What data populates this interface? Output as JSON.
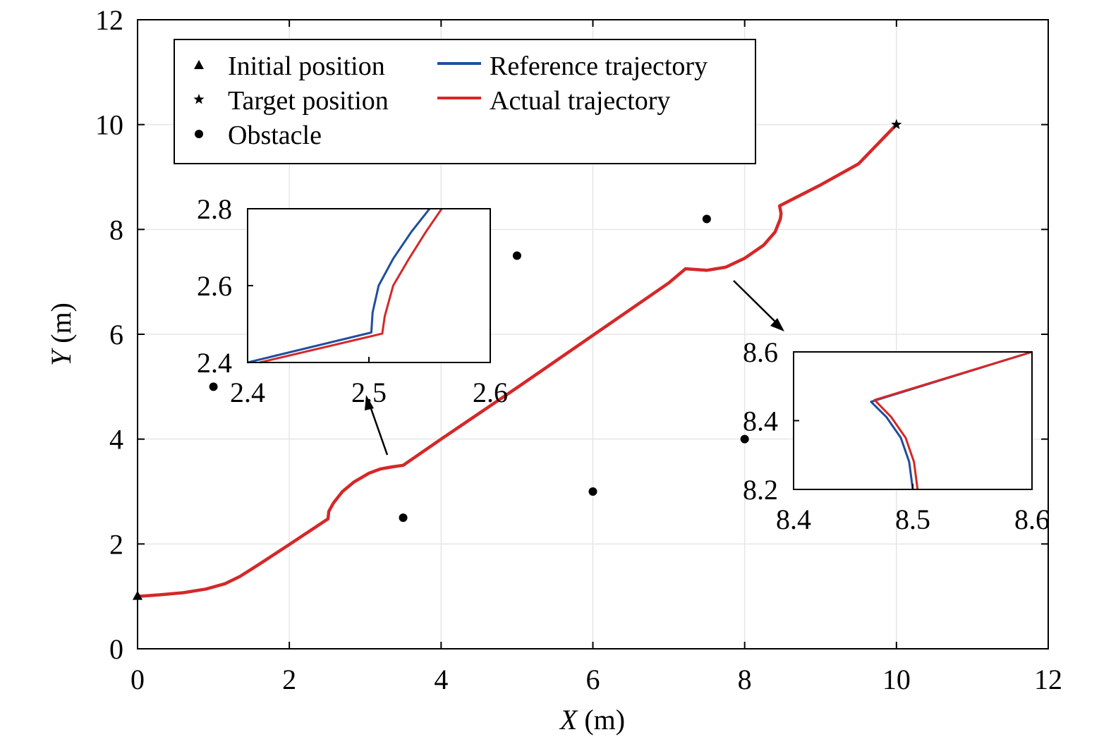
{
  "chart_data": [
    {
      "id": "main",
      "type": "line",
      "xlabel": {
        "italic": "X",
        "unit": " (m)"
      },
      "ylabel": {
        "italic": "Y",
        "unit": " (m)"
      },
      "xlim": [
        0,
        12
      ],
      "ylim": [
        0,
        12
      ],
      "xticks": [
        0,
        2,
        4,
        6,
        8,
        10,
        12
      ],
      "yticks": [
        0,
        2,
        4,
        6,
        8,
        10,
        12
      ],
      "grid": true,
      "legend": {
        "placement": "top-left",
        "entries": [
          {
            "label": "Initial position",
            "marker": "triangle"
          },
          {
            "label": "Target position",
            "marker": "star"
          },
          {
            "label": "Obstacle",
            "marker": "circle"
          },
          {
            "label": "Reference trajectory",
            "line": "#1f4e9e"
          },
          {
            "label": "Actual trajectory",
            "line": "#d62728"
          }
        ]
      },
      "initial_position": [
        0,
        1
      ],
      "target_position": [
        10,
        10
      ],
      "obstacles": [
        [
          1,
          5
        ],
        [
          3.5,
          2.5
        ],
        [
          5,
          7.5
        ],
        [
          6,
          3
        ],
        [
          7.5,
          8.2
        ],
        [
          8,
          4
        ]
      ],
      "colors": {
        "reference": "#1f4e9e",
        "actual": "#d62728"
      },
      "trajectory": [
        [
          0,
          1
        ],
        [
          0.3,
          1.03
        ],
        [
          0.6,
          1.07
        ],
        [
          0.9,
          1.14
        ],
        [
          1.15,
          1.24
        ],
        [
          1.35,
          1.38
        ],
        [
          1.6,
          1.61
        ],
        [
          2.0,
          1.99
        ],
        [
          2.25,
          2.23
        ],
        [
          2.51,
          2.48
        ],
        [
          2.52,
          2.62
        ],
        [
          2.58,
          2.78
        ],
        [
          2.7,
          3.0
        ],
        [
          2.85,
          3.18
        ],
        [
          3.05,
          3.35
        ],
        [
          3.2,
          3.43
        ],
        [
          3.35,
          3.47
        ],
        [
          3.5,
          3.5
        ],
        [
          4.0,
          4.0
        ],
        [
          5.0,
          4.98
        ],
        [
          6.0,
          5.98
        ],
        [
          7.0,
          6.98
        ],
        [
          7.22,
          7.25
        ],
        [
          7.5,
          7.22
        ],
        [
          7.75,
          7.28
        ],
        [
          8.0,
          7.45
        ],
        [
          8.25,
          7.7
        ],
        [
          8.4,
          7.95
        ],
        [
          8.47,
          8.2
        ],
        [
          8.48,
          8.3
        ],
        [
          8.46,
          8.45
        ],
        [
          9.0,
          8.85
        ],
        [
          9.5,
          9.25
        ],
        [
          10,
          10
        ]
      ]
    },
    {
      "id": "inset-left",
      "type": "line",
      "xlim": [
        2.4,
        2.6
      ],
      "ylim": [
        2.4,
        2.8
      ],
      "xticks": [
        2.4,
        2.5,
        2.6
      ],
      "yticks": [
        2.4,
        2.6,
        2.8
      ],
      "series": [
        {
          "name": "Reference trajectory",
          "color": "#1f4e9e",
          "points": [
            [
              2.4,
              2.4
            ],
            [
              2.502,
              2.478
            ],
            [
              2.503,
              2.53
            ],
            [
              2.508,
              2.6
            ],
            [
              2.52,
              2.67
            ],
            [
              2.535,
              2.74
            ],
            [
              2.55,
              2.8
            ]
          ]
        },
        {
          "name": "Actual trajectory",
          "color": "#d62728",
          "points": [
            [
              2.41,
              2.4
            ],
            [
              2.511,
              2.475
            ],
            [
              2.513,
              2.52
            ],
            [
              2.52,
              2.6
            ],
            [
              2.533,
              2.67
            ],
            [
              2.547,
              2.74
            ],
            [
              2.56,
              2.8
            ]
          ]
        }
      ]
    },
    {
      "id": "inset-right",
      "type": "line",
      "xlim": [
        8.4,
        8.6
      ],
      "ylim": [
        8.2,
        8.6
      ],
      "xticks": [
        8.4,
        8.5,
        8.6
      ],
      "yticks": [
        8.2,
        8.4,
        8.6
      ],
      "series": [
        {
          "name": "Reference trajectory",
          "color": "#1f4e9e",
          "points": [
            [
              8.6,
              8.6
            ],
            [
              8.465,
              8.455
            ],
            [
              8.478,
              8.41
            ],
            [
              8.49,
              8.35
            ],
            [
              8.497,
              8.28
            ],
            [
              8.5,
              8.2
            ]
          ]
        },
        {
          "name": "Actual trajectory",
          "color": "#d62728",
          "points": [
            [
              8.6,
              8.6
            ],
            [
              8.468,
              8.46
            ],
            [
              8.482,
              8.41
            ],
            [
              8.494,
              8.35
            ],
            [
              8.501,
              8.28
            ],
            [
              8.504,
              8.2
            ]
          ]
        }
      ]
    }
  ]
}
